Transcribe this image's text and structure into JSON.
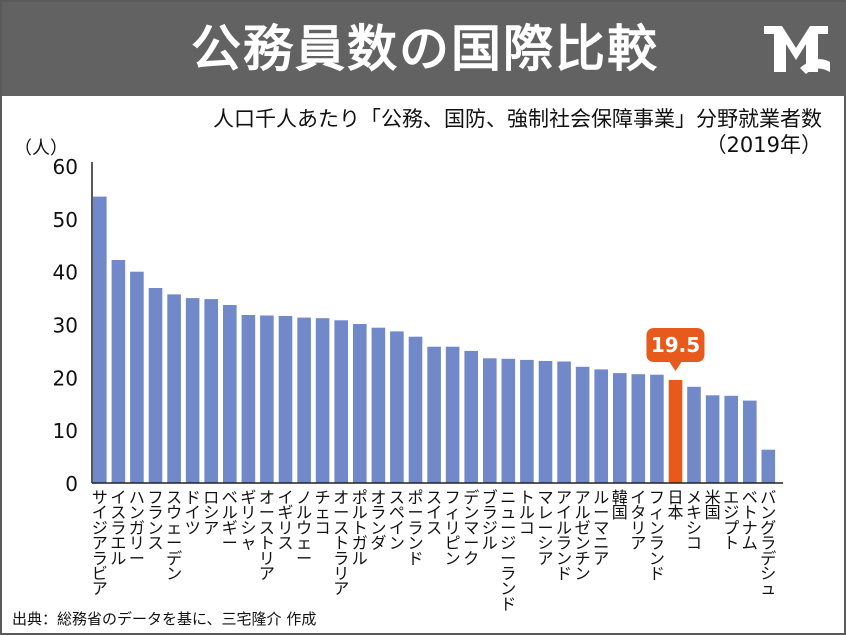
{
  "title": "公務員数の国際比較",
  "subtitle": "人口千人あたり「公務、国防、強制社会保障事業」分野就業者数",
  "year_note": "（2019年）",
  "unit_label": "（人）",
  "source": "出典：総務省のデータを基に、三宅隆介 作成",
  "logo_icon": "mr-logo-icon",
  "colors": {
    "bar": "#7189c9",
    "highlight": "#e85a1c",
    "titlebar": "#626262"
  },
  "chart_data": {
    "type": "bar",
    "title": "人口千人あたり「公務、国防、強制社会保障事業」分野就業者数",
    "xlabel": "",
    "ylabel": "（人）",
    "ylim": [
      0,
      60
    ],
    "yticks": [
      0,
      10,
      20,
      30,
      40,
      50,
      60
    ],
    "grid": false,
    "categories": [
      "サイジアラビア",
      "イスラエル",
      "ハンガリー",
      "フランス",
      "スウェーデン",
      "ドイツ",
      "ロシア",
      "ベルギー",
      "ギリシャ",
      "オーストリア",
      "イギリス",
      "ノルウェー",
      "チェコ",
      "オーストラリア",
      "ポルトガル",
      "オランダ",
      "スペイン",
      "ポーランド",
      "スイス",
      "フィリピン",
      "デンマーク",
      "ブラジル",
      "ニュージーランド",
      "トルコ",
      "マレーシア",
      "アイルランド",
      "アルゼンチン",
      "ルーマニア",
      "韓国",
      "イタリア",
      "フィンランド",
      "日本",
      "メキシコ",
      "米国",
      "エジプト",
      "ベトナム",
      "バングラデシュ"
    ],
    "values": [
      54.2,
      42.2,
      40.0,
      36.9,
      35.7,
      35.0,
      34.8,
      33.7,
      31.8,
      31.7,
      31.6,
      31.3,
      31.2,
      30.8,
      30.1,
      29.4,
      28.7,
      27.7,
      25.8,
      25.8,
      25.0,
      23.6,
      23.5,
      23.3,
      23.1,
      23.0,
      22.0,
      21.5,
      20.8,
      20.6,
      20.5,
      19.5,
      18.2,
      16.6,
      16.5,
      15.6,
      6.3
    ],
    "highlight": {
      "category": "日本",
      "label": "19.5"
    }
  }
}
